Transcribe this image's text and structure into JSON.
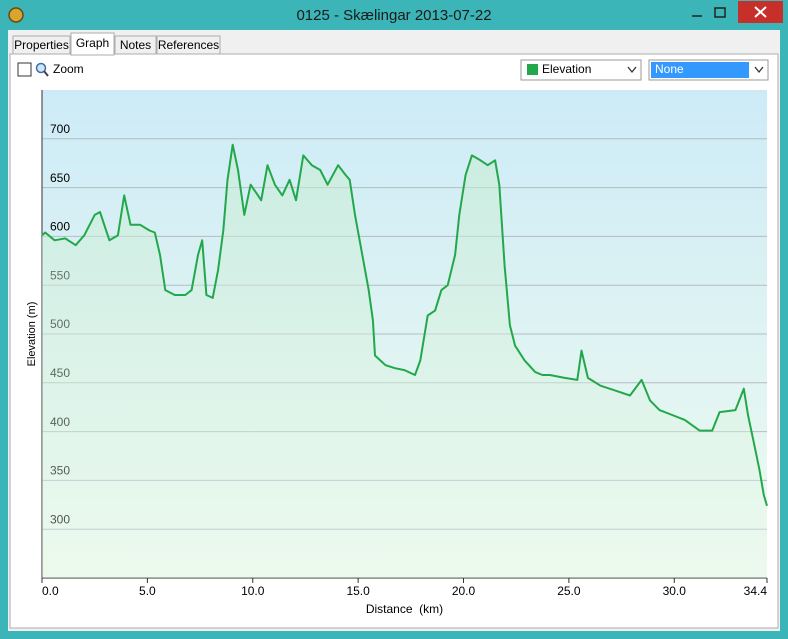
{
  "window": {
    "title": "0125 - Skælingar 2013-07-22"
  },
  "tabs": [
    "Properties",
    "Graph",
    "Notes",
    "References"
  ],
  "toolbar": {
    "zoom_label": "Zoom",
    "second_series": "None"
  },
  "chart_data": {
    "type": "line",
    "x_label": "Distance  (km)",
    "y_label": "Elevation (m)",
    "xlim": [
      0,
      34.4
    ],
    "ylim": [
      250,
      750
    ],
    "xticks": [
      {
        "value": 0,
        "label": "0.0"
      },
      {
        "value": 5,
        "label": "5.0"
      },
      {
        "value": 10,
        "label": "10.0"
      },
      {
        "value": 15,
        "label": "15.0"
      },
      {
        "value": 20,
        "label": "20.0"
      },
      {
        "value": 25,
        "label": "25.0"
      },
      {
        "value": 30,
        "label": "30.0"
      },
      34.4
    ],
    "yticks": [
      300,
      350,
      400,
      450,
      500,
      550,
      600,
      650,
      700
    ],
    "grid": true,
    "x": [
      0,
      0.15,
      0.6,
      1.1,
      1.6,
      2.0,
      2.5,
      2.75,
      3.2,
      3.6,
      3.9,
      4.2,
      4.65,
      5.1,
      5.35,
      5.6,
      5.85,
      6.3,
      6.8,
      7.1,
      7.4,
      7.6,
      7.8,
      8.1,
      8.35,
      8.6,
      8.8,
      9.05,
      9.3,
      9.6,
      9.9,
      10.25,
      10.4,
      10.7,
      11.05,
      11.4,
      11.75,
      12.05,
      12.4,
      12.8,
      13.2,
      13.55,
      14.05,
      14.4,
      14.6,
      14.85,
      15.2,
      15.5,
      15.7,
      15.8,
      16.3,
      16.75,
      17.2,
      17.7,
      17.95,
      18.3,
      18.65,
      18.95,
      19.25,
      19.6,
      19.8,
      20.1,
      20.4,
      20.8,
      21.15,
      21.5,
      21.7,
      21.95,
      22.2,
      22.45,
      22.9,
      23.4,
      23.75,
      24.1,
      24.8,
      25.4,
      25.6,
      25.9,
      26.5,
      27.2,
      27.9,
      28.45,
      28.85,
      29.3,
      29.9,
      30.5,
      31.2,
      31.8,
      32.15,
      32.9,
      33.3,
      33.5,
      33.8,
      34.05,
      34.25,
      34.4
    ],
    "series": [
      {
        "name": "Elevation",
        "color": "#22a84a",
        "values": [
          601,
          604,
          596,
          598,
          591,
          601,
          622,
          625,
          596,
          601,
          642,
          612,
          612,
          606,
          604,
          581,
          545,
          540,
          540,
          545,
          581,
          596,
          540,
          537,
          565,
          606,
          658,
          694,
          668,
          622,
          653,
          642,
          637,
          673,
          653,
          642,
          658,
          637,
          683,
          673,
          668,
          653,
          673,
          663,
          658,
          622,
          581,
          545,
          514,
          478,
          468,
          465,
          463,
          458,
          473,
          519,
          524,
          545,
          550,
          581,
          622,
          663,
          683,
          678,
          673,
          678,
          653,
          570,
          509,
          488,
          473,
          461,
          458,
          458,
          455,
          453,
          483,
          455,
          447,
          442,
          437,
          453,
          432,
          422,
          417,
          412,
          401,
          401,
          420,
          422,
          444,
          417,
          386,
          360,
          335,
          324
        ]
      }
    ]
  }
}
